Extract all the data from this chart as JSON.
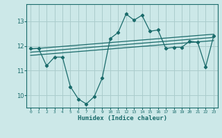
{
  "xlabel": "Humidex (Indice chaleur)",
  "ylabel": "",
  "bg_color": "#cce8e8",
  "grid_color": "#aacccc",
  "line_color": "#1a6b6b",
  "xlim": [
    -0.5,
    23.5
  ],
  "ylim": [
    9.5,
    13.7
  ],
  "yticks": [
    10,
    11,
    12,
    13
  ],
  "xticks": [
    0,
    1,
    2,
    3,
    4,
    5,
    6,
    7,
    8,
    9,
    10,
    11,
    12,
    13,
    14,
    15,
    16,
    17,
    18,
    19,
    20,
    21,
    22,
    23
  ],
  "main_x": [
    0,
    1,
    2,
    3,
    4,
    5,
    6,
    7,
    8,
    9,
    10,
    11,
    12,
    13,
    14,
    15,
    16,
    17,
    18,
    19,
    20,
    21,
    22,
    23
  ],
  "main_y": [
    11.9,
    11.9,
    11.2,
    11.55,
    11.55,
    10.35,
    9.85,
    9.65,
    9.95,
    10.7,
    12.3,
    12.55,
    13.3,
    13.05,
    13.25,
    12.6,
    12.65,
    11.9,
    11.95,
    11.95,
    12.2,
    12.15,
    11.15,
    12.4
  ],
  "reg_line1_x": [
    0,
    23
  ],
  "reg_line1_y": [
    11.88,
    12.48
  ],
  "reg_line2_x": [
    0,
    23
  ],
  "reg_line2_y": [
    11.75,
    12.35
  ],
  "reg_line3_x": [
    0,
    23
  ],
  "reg_line3_y": [
    11.62,
    12.22
  ]
}
